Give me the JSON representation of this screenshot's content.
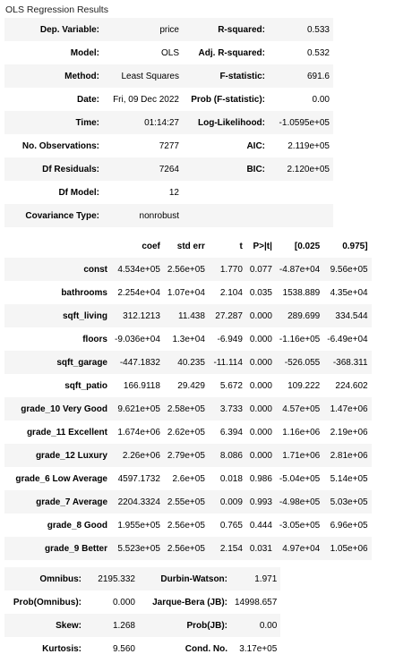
{
  "caption": "OLS Regression Results",
  "summary": [
    {
      "l1": "Dep. Variable:",
      "v1": "price",
      "l2": "R-squared:",
      "v2": "0.533"
    },
    {
      "l1": "Model:",
      "v1": "OLS",
      "l2": "Adj. R-squared:",
      "v2": "0.532"
    },
    {
      "l1": "Method:",
      "v1": "Least Squares",
      "l2": "F-statistic:",
      "v2": "691.6"
    },
    {
      "l1": "Date:",
      "v1": "Fri, 09 Dec 2022",
      "l2": "Prob (F-statistic):",
      "v2": "0.00"
    },
    {
      "l1": "Time:",
      "v1": "01:14:27",
      "l2": "Log-Likelihood:",
      "v2": "-1.0595e+05"
    },
    {
      "l1": "No. Observations:",
      "v1": "7277",
      "l2": "AIC:",
      "v2": "2.119e+05"
    },
    {
      "l1": "Df Residuals:",
      "v1": "7264",
      "l2": "BIC:",
      "v2": "2.120e+05"
    },
    {
      "l1": "Df Model:",
      "v1": "12",
      "l2": "",
      "v2": ""
    },
    {
      "l1": "Covariance Type:",
      "v1": "nonrobust",
      "l2": "",
      "v2": ""
    }
  ],
  "coef_headers": [
    "",
    "coef",
    "std err",
    "t",
    "P>|t|",
    "[0.025",
    "0.975]"
  ],
  "coefficients": [
    [
      "const",
      "4.534e+05",
      "2.56e+05",
      "1.770",
      "0.077",
      "-4.87e+04",
      "9.56e+05"
    ],
    [
      "bathrooms",
      "2.254e+04",
      "1.07e+04",
      "2.104",
      "0.035",
      "1538.889",
      "4.35e+04"
    ],
    [
      "sqft_living",
      "312.1213",
      "11.438",
      "27.287",
      "0.000",
      "289.699",
      "334.544"
    ],
    [
      "floors",
      "-9.036e+04",
      "1.3e+04",
      "-6.949",
      "0.000",
      "-1.16e+05",
      "-6.49e+04"
    ],
    [
      "sqft_garage",
      "-447.1832",
      "40.235",
      "-11.114",
      "0.000",
      "-526.055",
      "-368.311"
    ],
    [
      "sqft_patio",
      "166.9118",
      "29.429",
      "5.672",
      "0.000",
      "109.222",
      "224.602"
    ],
    [
      "grade_10 Very Good",
      "9.621e+05",
      "2.58e+05",
      "3.733",
      "0.000",
      "4.57e+05",
      "1.47e+06"
    ],
    [
      "grade_11 Excellent",
      "1.674e+06",
      "2.62e+05",
      "6.394",
      "0.000",
      "1.16e+06",
      "2.19e+06"
    ],
    [
      "grade_12 Luxury",
      "2.26e+06",
      "2.79e+05",
      "8.086",
      "0.000",
      "1.71e+06",
      "2.81e+06"
    ],
    [
      "grade_6 Low Average",
      "4597.1732",
      "2.6e+05",
      "0.018",
      "0.986",
      "-5.04e+05",
      "5.14e+05"
    ],
    [
      "grade_7 Average",
      "2204.3324",
      "2.55e+05",
      "0.009",
      "0.993",
      "-4.98e+05",
      "5.03e+05"
    ],
    [
      "grade_8 Good",
      "1.955e+05",
      "2.56e+05",
      "0.765",
      "0.444",
      "-3.05e+05",
      "6.96e+05"
    ],
    [
      "grade_9 Better",
      "5.523e+05",
      "2.56e+05",
      "2.154",
      "0.031",
      "4.97e+04",
      "1.05e+06"
    ]
  ],
  "diagnostics": [
    {
      "l1": "Omnibus:",
      "v1": "2195.332",
      "l2": "Durbin-Watson:",
      "v2": "1.971"
    },
    {
      "l1": "Prob(Omnibus):",
      "v1": "0.000",
      "l2": "Jarque-Bera (JB):",
      "v2": "14998.657"
    },
    {
      "l1": "Skew:",
      "v1": "1.268",
      "l2": "Prob(JB):",
      "v2": "0.00"
    },
    {
      "l1": "Kurtosis:",
      "v1": "9.560",
      "l2": "Cond. No.",
      "v2": "3.17e+05"
    }
  ]
}
